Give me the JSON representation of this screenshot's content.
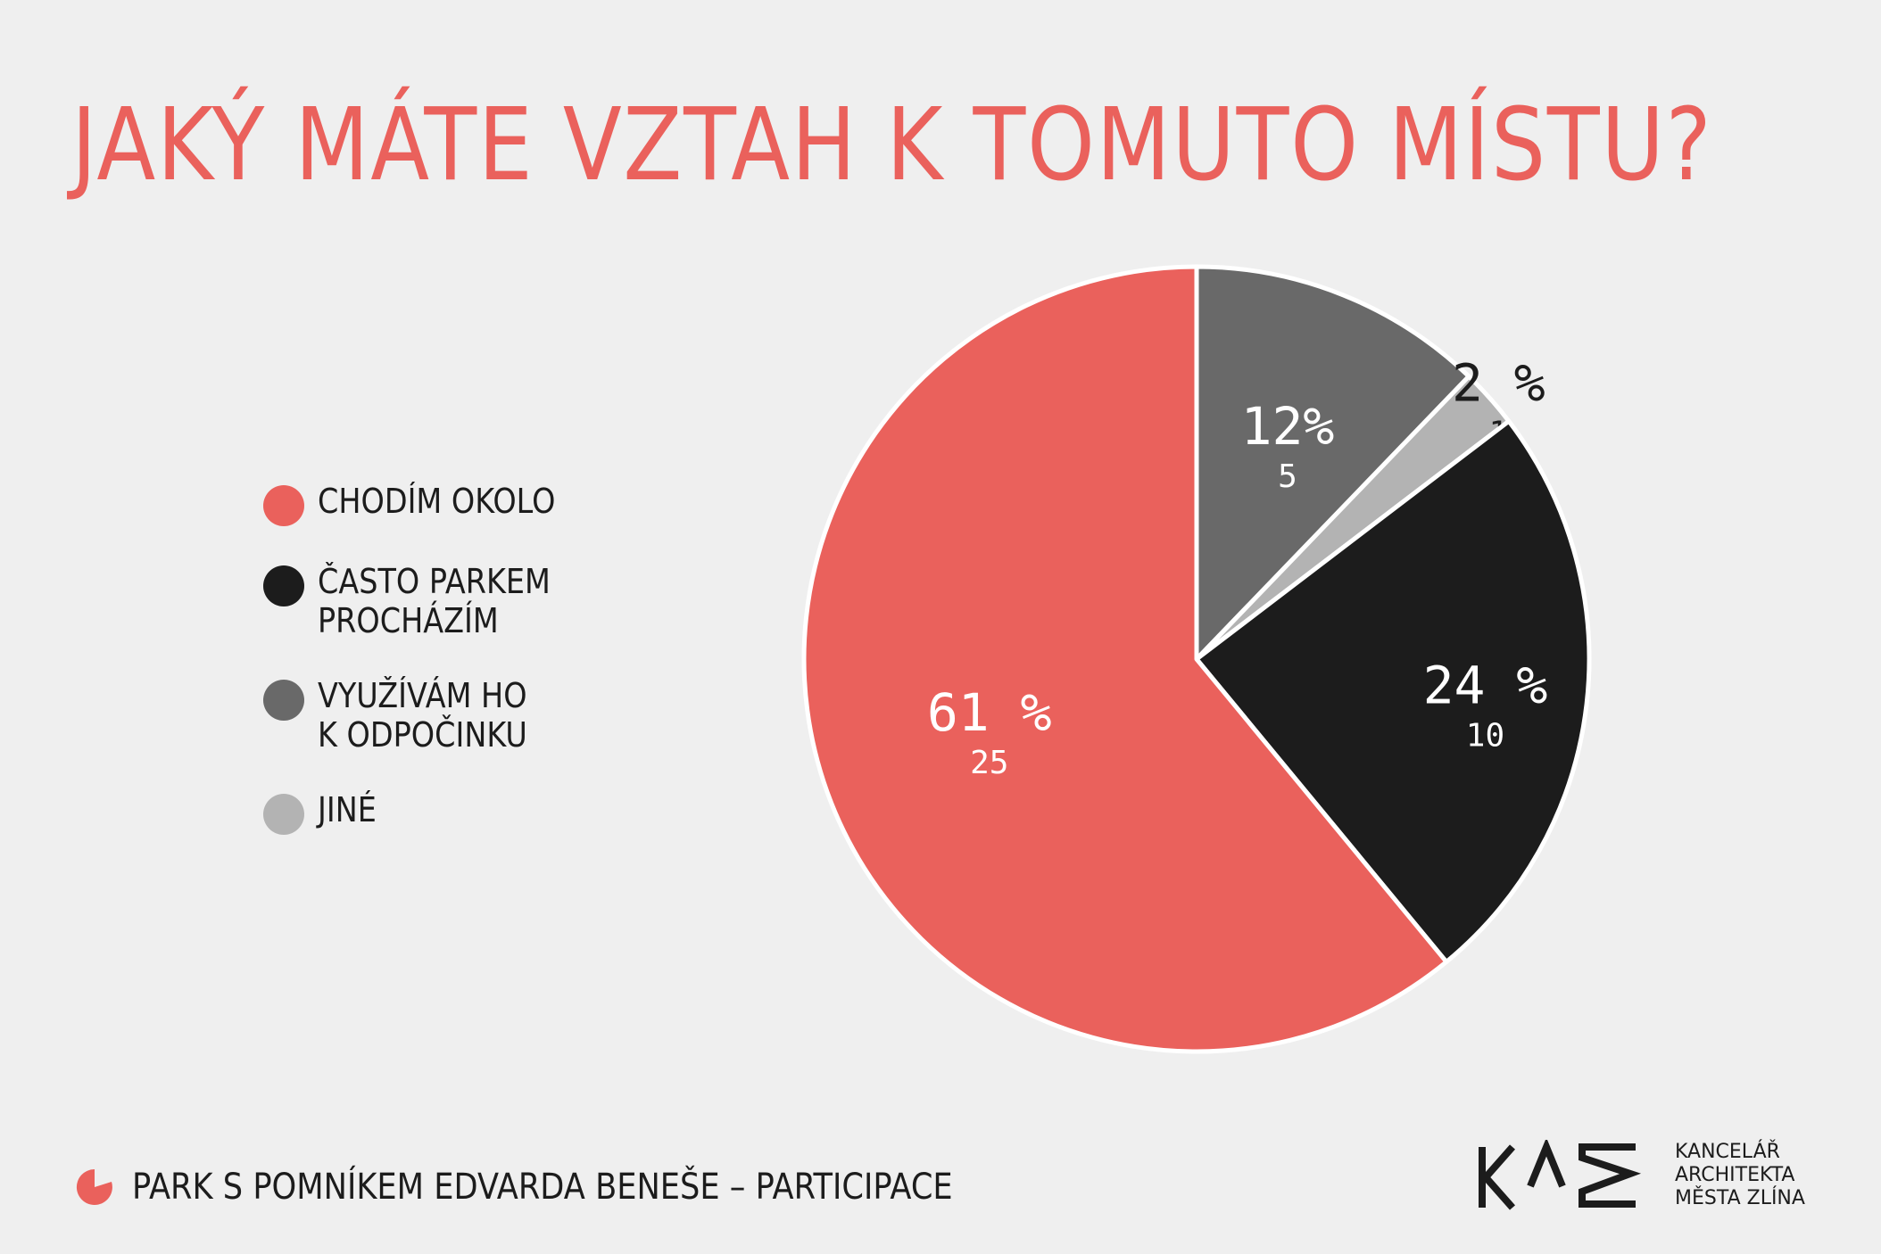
{
  "title": "JAKÝ MÁTE VZTAH K TOMUTO MÍSTU?",
  "chart_data": {
    "type": "pie",
    "title": "JAKÝ MÁTE VZTAH K TOMUTO MÍSTU?",
    "start": "top",
    "direction": "clockwise",
    "slices": [
      {
        "label": "VYUŽÍVÁM HO K ODPOČINKU",
        "percent_label": "12%",
        "count": 5,
        "color": "#696969",
        "text_color": "#ffffff"
      },
      {
        "label": "JINÉ",
        "percent_label": "2 %",
        "count": 1,
        "color": "#b3b3b3",
        "text_color": "#1c1c1c"
      },
      {
        "label": "ČASTO PARKEM PROCHÁZÍM",
        "percent_label": "24 %",
        "count": 10,
        "color": "#1c1c1c",
        "text_color": "#ffffff"
      },
      {
        "label": "CHODÍM OKOLO",
        "percent_label": "61 %",
        "count": 25,
        "color": "#ea615c",
        "text_color": "#ffffff"
      }
    ],
    "legend": {
      "placement": "left",
      "items": [
        {
          "label": "CHODÍM OKOLO",
          "color": "#ea615c"
        },
        {
          "label": "ČASTO PARKEM\nPROCHÁZÍM",
          "color": "#1c1c1c"
        },
        {
          "label": "VYUŽÍVÁM HO\nK ODPOČINKU",
          "color": "#696969"
        },
        {
          "label": "JINÉ",
          "color": "#b3b3b3"
        }
      ]
    }
  },
  "footer": {
    "text": "PARK S POMNÍKEM EDVARDA BENEŠE – PARTICIPACE",
    "icon": "pie-icon",
    "icon_color": "#ea615c"
  },
  "logo": {
    "mark": "KAM",
    "text": "KANCELÁŘ\nARCHITEKTA\nMĚSTA ZLÍNA"
  }
}
